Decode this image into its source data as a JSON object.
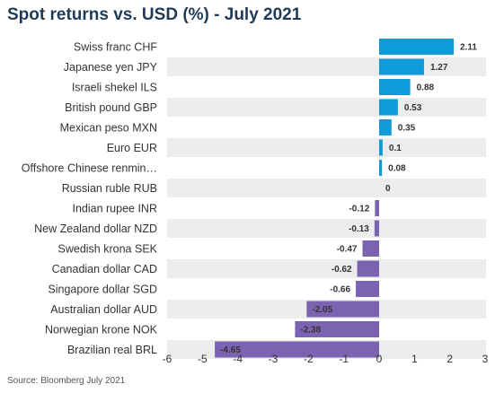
{
  "chart_data": {
    "type": "bar",
    "orientation": "horizontal",
    "title": "Spot returns vs. USD (%) - July 2021",
    "source": "Source: Bloomberg July 2021",
    "categories": [
      "Swiss franc CHF",
      "Japanese yen JPY",
      "Israeli shekel ILS",
      "British pound GBP",
      "Mexican peso MXN",
      "Euro EUR",
      "Offshore Chinese renmin…",
      "Russian ruble RUB",
      "Indian rupee INR",
      "New Zealand dollar NZD",
      "Swedish krona SEK",
      "Canadian dollar CAD",
      "Singapore dollar SGD",
      "Australian dollar AUD",
      "Norwegian krone NOK",
      "Brazilian real BRL"
    ],
    "values": [
      2.11,
      1.27,
      0.88,
      0.53,
      0.35,
      0.1,
      0.08,
      0,
      -0.12,
      -0.13,
      -0.47,
      -0.62,
      -0.66,
      -2.05,
      -2.38,
      -4.65
    ],
    "data_labels": [
      "2.11",
      "1.27",
      "0.88",
      "0.53",
      "0.35",
      "0.1",
      "0.08",
      "0",
      "-0.12",
      "-0.13",
      "-0.47",
      "-0.62",
      "-0.66",
      "-2.05",
      "-2.38",
      "-4.65"
    ],
    "xlim": [
      -6,
      3
    ],
    "xticks": [
      -6,
      -5,
      -4,
      -3,
      -2,
      -1,
      0,
      1,
      2,
      3
    ],
    "grid": false,
    "colors": {
      "positive": "#0f9ad9",
      "negative": "#7b63b1",
      "row_band": "#ececec"
    }
  }
}
